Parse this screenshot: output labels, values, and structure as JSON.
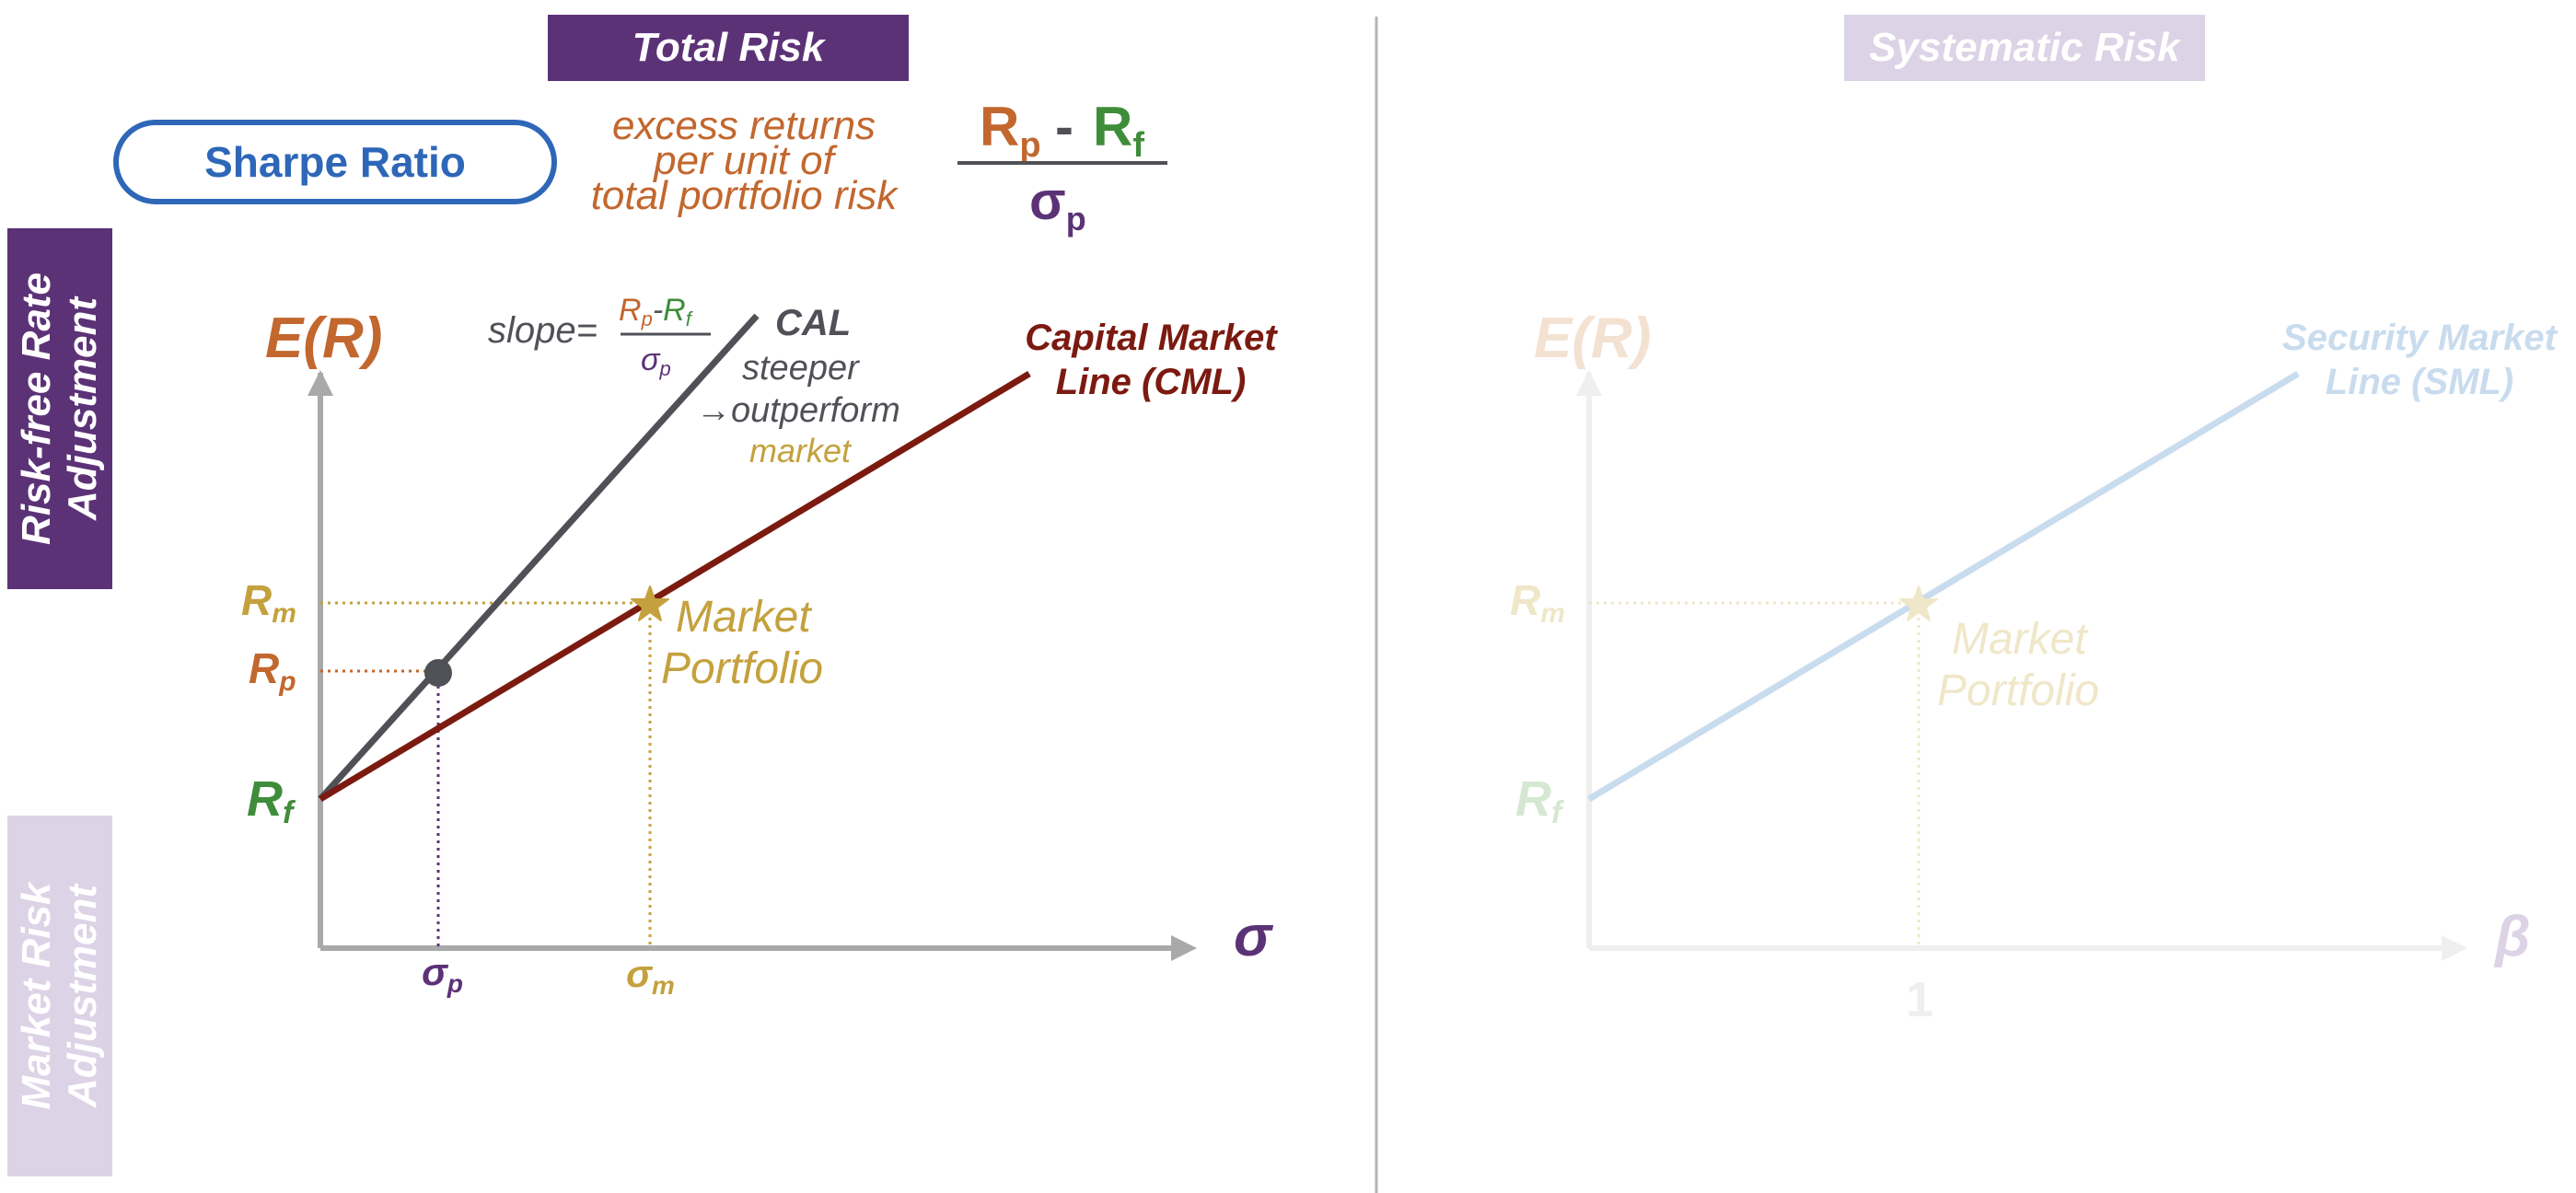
{
  "banners": {
    "total_risk": "Total Risk",
    "systematic_risk": "Systematic Risk"
  },
  "side_labels": {
    "risk_free_line1": "Risk-free Rate",
    "risk_free_line2": "Adjustment",
    "market_risk_line1": "Market Risk",
    "market_risk_line2": "Adjustment"
  },
  "sharpe": {
    "pill_label": "Sharpe Ratio",
    "desc_line1": "excess returns",
    "desc_line2": "per unit of",
    "desc_line3": "total portfolio risk",
    "num_rp": "R",
    "num_rp_sub": "p",
    "num_minus": " - ",
    "num_rf": "R",
    "num_rf_sub": "f",
    "den": "σ",
    "den_sub": "p"
  },
  "left_chart": {
    "y_axis_label": "E(R)",
    "x_axis_label": "σ",
    "rm": "R",
    "rm_sub": "m",
    "rp": "R",
    "rp_sub": "p",
    "rf": "R",
    "rf_sub": "f",
    "sigma_p": "σ",
    "sigma_p_sub": "p",
    "sigma_m": "σ",
    "sigma_m_sub": "m",
    "slope_prefix": "slope=",
    "slope_num_rp": "R",
    "slope_num_rp_sub": "p",
    "slope_num_dash": "-",
    "slope_num_rf": "R",
    "slope_num_rf_sub": "f",
    "slope_den": "σ",
    "slope_den_sub": "p",
    "cal_label": "CAL",
    "cal_note1": "steeper",
    "cal_note2": "→outperform",
    "cal_note3": "market",
    "cml_line1": "Capital Market",
    "cml_line2": "Line (CML)",
    "market_line1": "Market",
    "market_line2": "Portfolio"
  },
  "right_chart": {
    "y_axis_label": "E(R)",
    "x_axis_label": "β",
    "rm": "R",
    "rm_sub": "m",
    "rf": "R",
    "rf_sub": "f",
    "one": "1",
    "sml_line1": "Security Market",
    "sml_line2": "Line (SML)",
    "market_line1": "Market",
    "market_line2": "Portfolio"
  },
  "colors": {
    "purple": "#5c3277",
    "orange": "#c2672e",
    "green": "#3f8d3a",
    "gold": "#c4a13d",
    "dark_red": "#7b1a10",
    "gray": "#4f5157",
    "blue": "#2e67b8",
    "axis": "#a9a9a9"
  }
}
